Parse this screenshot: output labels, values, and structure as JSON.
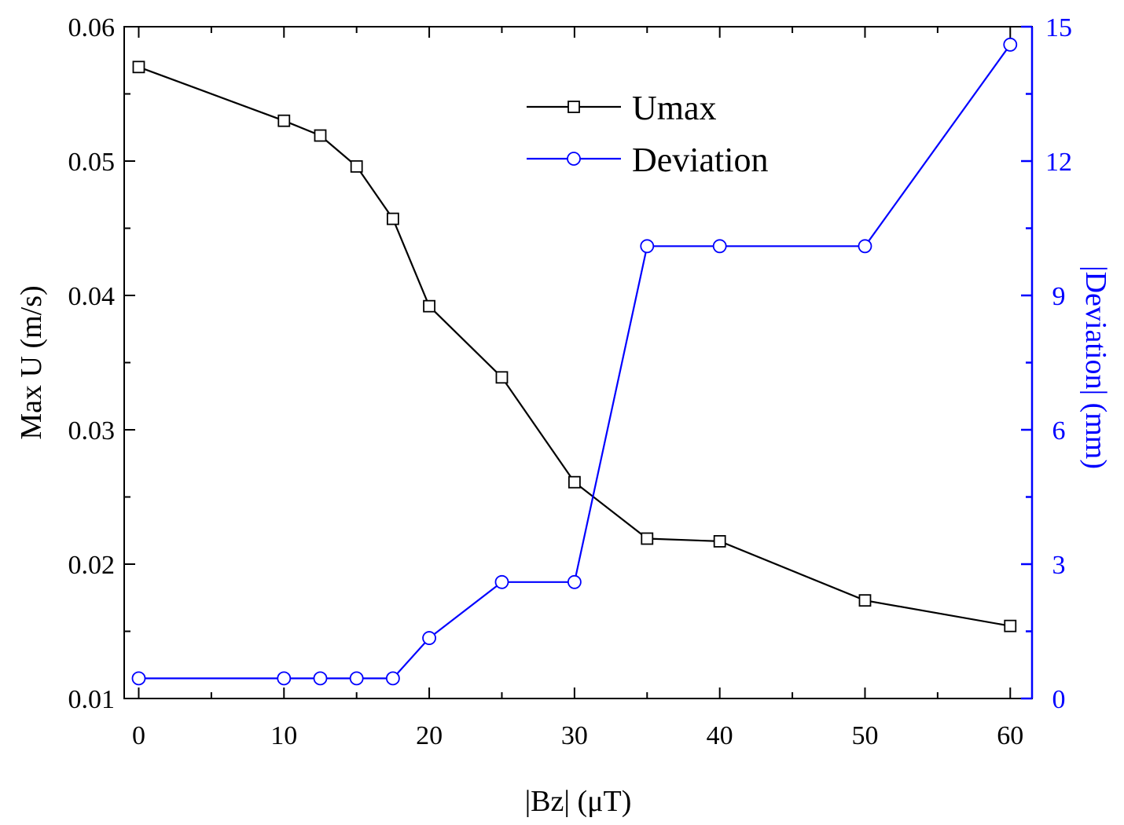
{
  "chart_data": {
    "type": "line",
    "x": [
      0,
      10,
      12.5,
      15,
      17.5,
      20,
      25,
      30,
      35,
      40,
      50,
      60
    ],
    "xlabel": "|Bz| (μT)",
    "xlim": [
      -1,
      61.5
    ],
    "xticks": [
      "0",
      "10",
      "20",
      "30",
      "40",
      "50",
      "60"
    ],
    "xtick_values": [
      0,
      10,
      20,
      30,
      40,
      50,
      60
    ],
    "y_left": {
      "label": "Max U (m/s)",
      "lim": [
        0.01,
        0.06
      ],
      "ticks": [
        "0.01",
        "0.02",
        "0.03",
        "0.04",
        "0.05",
        "0.06"
      ],
      "tick_values": [
        0.01,
        0.02,
        0.03,
        0.04,
        0.05,
        0.06
      ],
      "color": "#000000"
    },
    "y_right": {
      "label": "|Deviation| (mm)",
      "lim": [
        0,
        15
      ],
      "ticks": [
        "0",
        "3",
        "6",
        "9",
        "12",
        "15"
      ],
      "tick_values": [
        0,
        3,
        6,
        9,
        12,
        15
      ],
      "color": "#0000ff"
    },
    "series": [
      {
        "name": "Umax",
        "axis": "left",
        "marker": "square",
        "color": "#000000",
        "values": [
          0.057,
          0.053,
          0.0519,
          0.0496,
          0.0457,
          0.0392,
          0.0339,
          0.0261,
          0.0219,
          0.0217,
          0.0173,
          0.0154
        ]
      },
      {
        "name": "Deviation",
        "axis": "right",
        "marker": "circle",
        "color": "#0000ff",
        "values": [
          0.45,
          0.45,
          0.45,
          0.45,
          0.45,
          1.35,
          2.6,
          2.6,
          10.1,
          10.1,
          10.1,
          14.6
        ]
      }
    ],
    "legend_position": "top-center",
    "grid": false
  }
}
